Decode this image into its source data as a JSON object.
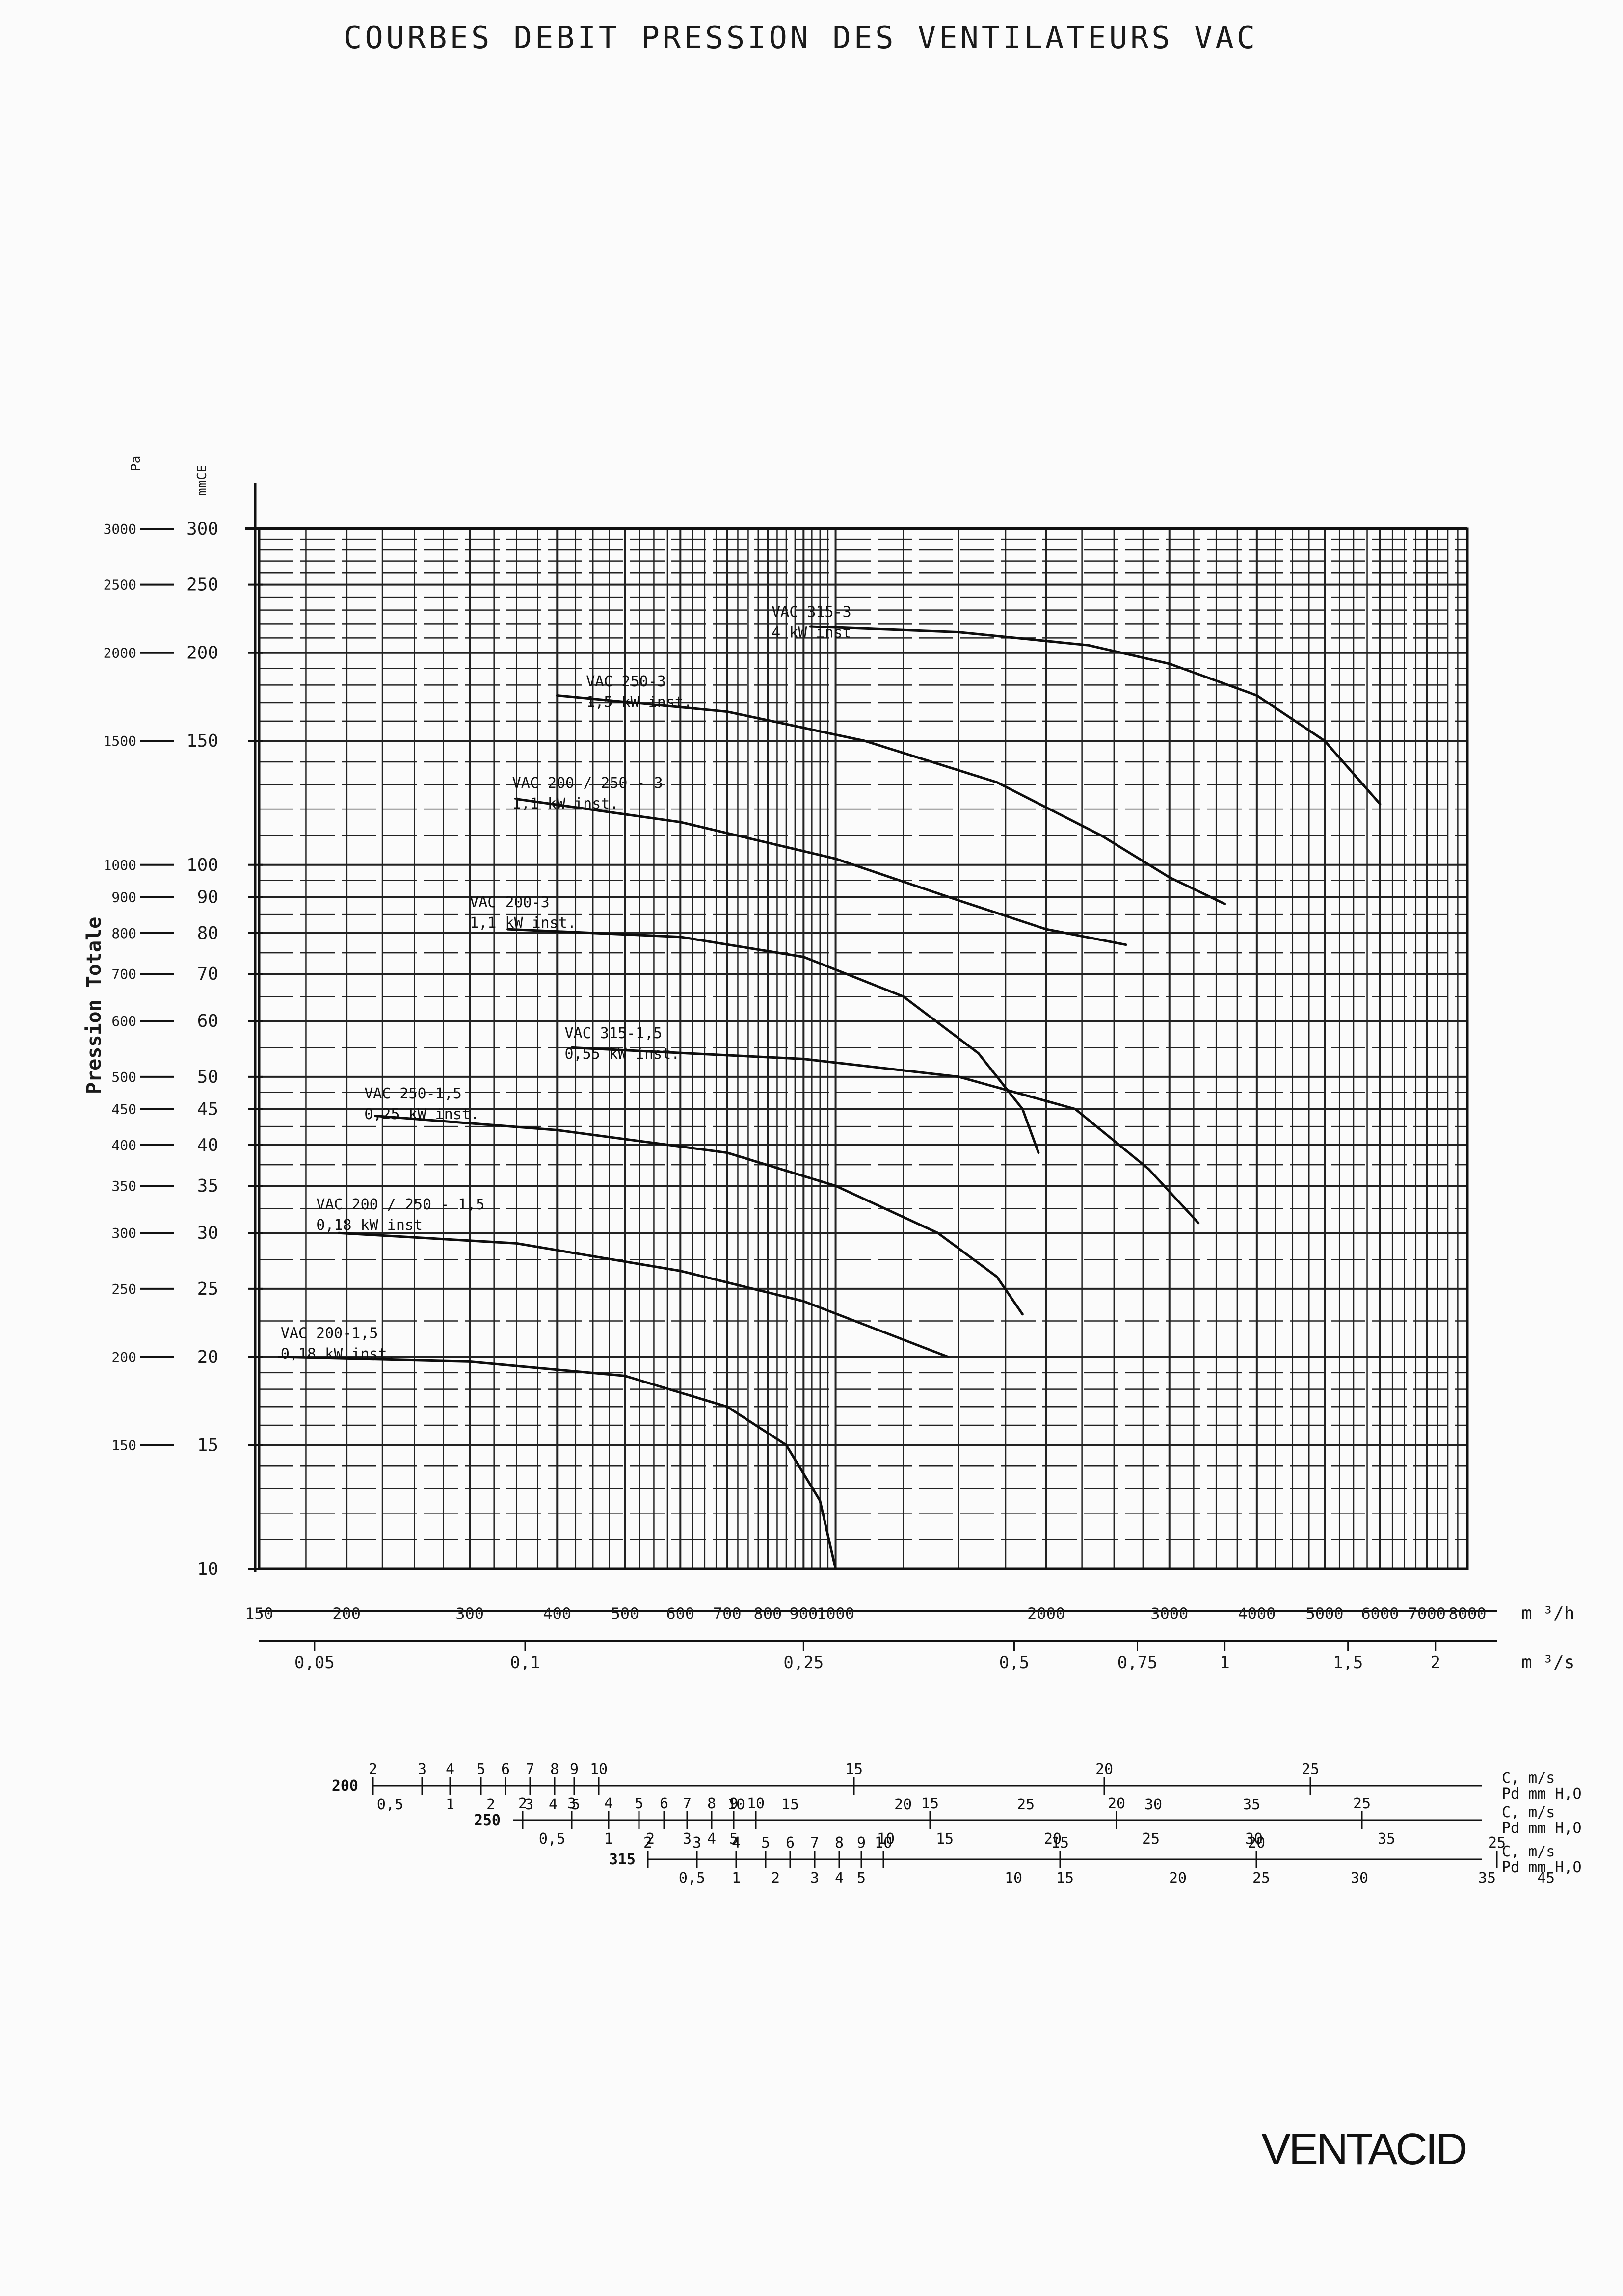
{
  "title": "COURBES DEBIT PRESSION DES VENTILATEURS VAC",
  "brand": "VENTACID",
  "chart_data": {
    "type": "line",
    "title": "COURBES DEBIT PRESSION DES VENTILATEURS VAC",
    "ylabel": "Pression Totale",
    "y_units": {
      "pa": "Pa",
      "mmce": "mmCE"
    },
    "x_units": {
      "m3h": "m ³/h",
      "m3s": "m ³/s"
    },
    "x_scale": "log",
    "y_scale": "log",
    "xlim": [
      150,
      8000
    ],
    "ylim": [
      10,
      300
    ],
    "grid": true,
    "x_ticks_m3h": [
      {
        "value": 150,
        "label": "150"
      },
      {
        "value": 200,
        "label": "200"
      },
      {
        "value": 300,
        "label": "300"
      },
      {
        "value": 400,
        "label": "400"
      },
      {
        "value": 500,
        "label": "500"
      },
      {
        "value": 600,
        "label": "600"
      },
      {
        "value": 700,
        "label": "700"
      },
      {
        "value": 800,
        "label": "800"
      },
      {
        "value": 900,
        "label": "900"
      },
      {
        "value": 1000,
        "label": "1000"
      },
      {
        "value": 2000,
        "label": "2000"
      },
      {
        "value": 3000,
        "label": "3000"
      },
      {
        "value": 4000,
        "label": "4000"
      },
      {
        "value": 5000,
        "label": "5000"
      },
      {
        "value": 6000,
        "label": "6000"
      },
      {
        "value": 7000,
        "label": "7000"
      },
      {
        "value": 8000,
        "label": "8000"
      }
    ],
    "x_ticks_m3s": [
      {
        "value": 0.05,
        "label": "0,05"
      },
      {
        "value": 0.1,
        "label": "0,1"
      },
      {
        "value": 0.25,
        "label": "0,25"
      },
      {
        "value": 0.5,
        "label": "0,5"
      },
      {
        "value": 0.75,
        "label": "0,75"
      },
      {
        "value": 1,
        "label": "1"
      },
      {
        "value": 1.5,
        "label": "1,5"
      },
      {
        "value": 2,
        "label": "2"
      }
    ],
    "y_ticks_mmce": [
      {
        "value": 300,
        "label": "300"
      },
      {
        "value": 250,
        "label": "250"
      },
      {
        "value": 200,
        "label": "200"
      },
      {
        "value": 150,
        "label": "150"
      },
      {
        "value": 100,
        "label": "100"
      },
      {
        "value": 90,
        "label": "90"
      },
      {
        "value": 80,
        "label": "80"
      },
      {
        "value": 70,
        "label": "70"
      },
      {
        "value": 60,
        "label": "60"
      },
      {
        "value": 50,
        "label": "50"
      },
      {
        "value": 45,
        "label": "45"
      },
      {
        "value": 40,
        "label": "40"
      },
      {
        "value": 35,
        "label": "35"
      },
      {
        "value": 30,
        "label": "30"
      },
      {
        "value": 25,
        "label": "25"
      },
      {
        "value": 20,
        "label": "20"
      },
      {
        "value": 15,
        "label": "15"
      },
      {
        "value": 10,
        "label": "10"
      }
    ],
    "y_ticks_pa": [
      {
        "value": 3000,
        "label": "3000"
      },
      {
        "value": 2500,
        "label": "2500"
      },
      {
        "value": 2000,
        "label": "2000"
      },
      {
        "value": 1500,
        "label": "1500"
      },
      {
        "value": 1000,
        "label": "1000"
      },
      {
        "value": 900,
        "label": "900"
      },
      {
        "value": 800,
        "label": "800"
      },
      {
        "value": 700,
        "label": "700"
      },
      {
        "value": 600,
        "label": "600"
      },
      {
        "value": 500,
        "label": "500"
      },
      {
        "value": 450,
        "label": "450"
      },
      {
        "value": 400,
        "label": "400"
      },
      {
        "value": 350,
        "label": "350"
      },
      {
        "value": 300,
        "label": "300"
      },
      {
        "value": 250,
        "label": "250"
      },
      {
        "value": 200,
        "label": "200"
      },
      {
        "value": 150,
        "label": "150"
      }
    ],
    "series": [
      {
        "name": "VAC 315-3",
        "label2": "4 kW inst",
        "label_at": [
          810,
          222
        ],
        "points": [
          [
            920,
            218
          ],
          [
            1500,
            214
          ],
          [
            2300,
            205
          ],
          [
            3000,
            193
          ],
          [
            4000,
            174
          ],
          [
            5000,
            150
          ],
          [
            6000,
            122
          ]
        ]
      },
      {
        "name": "VAC 250-3",
        "label2": "1,5 kW inst.",
        "label_at": [
          440,
          177
        ],
        "points": [
          [
            400,
            174
          ],
          [
            700,
            165
          ],
          [
            1100,
            150
          ],
          [
            1700,
            131
          ],
          [
            2400,
            110
          ],
          [
            3000,
            96
          ],
          [
            3600,
            88
          ]
        ]
      },
      {
        "name": "VAC 200 / 250 - 3",
        "label2": "1,1 kW inst.",
        "label_at": [
          345,
          127
        ],
        "points": [
          [
            350,
            124
          ],
          [
            600,
            115
          ],
          [
            1000,
            102
          ],
          [
            1500,
            89
          ],
          [
            2000,
            81
          ],
          [
            2600,
            77
          ]
        ]
      },
      {
        "name": "VAC 200-3",
        "label2": "1,1 kW inst.",
        "label_at": [
          300,
          86
        ],
        "points": [
          [
            340,
            81
          ],
          [
            600,
            79
          ],
          [
            900,
            74
          ],
          [
            1250,
            65
          ],
          [
            1600,
            54
          ],
          [
            1850,
            45
          ],
          [
            1950,
            39
          ]
        ]
      },
      {
        "name": "VAC 315-1,5",
        "label2": "0,55 kW inst.",
        "label_at": [
          410,
          56
        ],
        "points": [
          [
            420,
            55
          ],
          [
            900,
            53
          ],
          [
            1500,
            50
          ],
          [
            2200,
            45
          ],
          [
            2800,
            37
          ],
          [
            3300,
            31
          ]
        ]
      },
      {
        "name": "VAC 250-1,5",
        "label2": "0,25 kW inst.",
        "label_at": [
          212,
          46
        ],
        "points": [
          [
            220,
            44
          ],
          [
            400,
            42
          ],
          [
            700,
            39
          ],
          [
            1000,
            35
          ],
          [
            1400,
            30
          ],
          [
            1700,
            26
          ],
          [
            1850,
            23
          ]
        ]
      },
      {
        "name": "VAC 200 / 250 - 1,5",
        "label2": "0,18 kW inst",
        "label_at": [
          181,
          32
        ],
        "points": [
          [
            195,
            30
          ],
          [
            350,
            29
          ],
          [
            600,
            26.5
          ],
          [
            900,
            24
          ],
          [
            1200,
            21.5
          ],
          [
            1450,
            20
          ]
        ]
      },
      {
        "name": "VAC 200-1,5",
        "label2": "0,18 kW inst.",
        "label_at": [
          161,
          21
        ],
        "points": [
          [
            160,
            20
          ],
          [
            300,
            19.7
          ],
          [
            500,
            18.8
          ],
          [
            700,
            17
          ],
          [
            850,
            15
          ],
          [
            950,
            12.5
          ],
          [
            1000,
            10
          ]
        ]
      }
    ]
  },
  "velocity_scales": {
    "unit_c": "C, m/s",
    "unit_pd": "Pd mm H,O",
    "rows": [
      {
        "size": "200",
        "c": [
          [
            "2",
            270
          ],
          [
            "3",
            370
          ],
          [
            "4",
            427
          ],
          [
            "5",
            490
          ],
          [
            "6",
            540
          ],
          [
            "7",
            590
          ],
          [
            "8",
            640
          ],
          [
            "9",
            680
          ],
          [
            "10",
            730
          ],
          [
            "15",
            1250
          ],
          [
            "20",
            1760
          ],
          [
            "25",
            2180
          ]
        ],
        "pd": [
          [
            "0,5",
            305
          ],
          [
            "1",
            427
          ],
          [
            "2",
            510
          ],
          [
            "3",
            588
          ],
          [
            "4",
            637
          ],
          [
            "5",
            683
          ],
          [
            "10",
            1010
          ],
          [
            "15",
            1120
          ],
          [
            "20",
            1350
          ],
          [
            "25",
            1600
          ],
          [
            "30",
            1860
          ],
          [
            "35",
            2060
          ]
        ]
      },
      {
        "size": "250",
        "c": [
          [
            "2",
            270
          ],
          [
            "3",
            370
          ],
          [
            "4",
            445
          ],
          [
            "5",
            507
          ],
          [
            "6",
            558
          ],
          [
            "7",
            605
          ],
          [
            "8",
            655
          ],
          [
            "9",
            700
          ],
          [
            "10",
            745
          ],
          [
            "15",
            1100
          ],
          [
            "20",
            1480
          ],
          [
            "25",
            1980
          ]
        ],
        "pd": [
          [
            "0,5",
            330
          ],
          [
            "1",
            445
          ],
          [
            "2",
            530
          ],
          [
            "3",
            605
          ],
          [
            "4",
            655
          ],
          [
            "5",
            700
          ],
          [
            "10",
            1010
          ],
          [
            "15",
            1130
          ],
          [
            "20",
            1350
          ],
          [
            "25",
            1550
          ],
          [
            "30",
            1760
          ],
          [
            "35",
            2030
          ]
        ]
      },
      {
        "size": "315",
        "c": [
          [
            "2",
            270
          ],
          [
            "3",
            370
          ],
          [
            "4",
            450
          ],
          [
            "5",
            510
          ],
          [
            "6",
            560
          ],
          [
            "7",
            610
          ],
          [
            "8",
            660
          ],
          [
            "9",
            705
          ],
          [
            "10",
            750
          ],
          [
            "15",
            1110
          ],
          [
            "20",
            1510
          ],
          [
            "25",
            2000
          ],
          [
            "30",
            2410
          ]
        ],
        "pd": [
          [
            "0,5",
            360
          ],
          [
            "1",
            450
          ],
          [
            "2",
            530
          ],
          [
            "3",
            610
          ],
          [
            "4",
            660
          ],
          [
            "5",
            705
          ],
          [
            "10",
            1015
          ],
          [
            "15",
            1120
          ],
          [
            "20",
            1350
          ],
          [
            "25",
            1520
          ],
          [
            "30",
            1720
          ],
          [
            "35",
            1980
          ],
          [
            "45",
            2100
          ]
        ]
      }
    ]
  }
}
